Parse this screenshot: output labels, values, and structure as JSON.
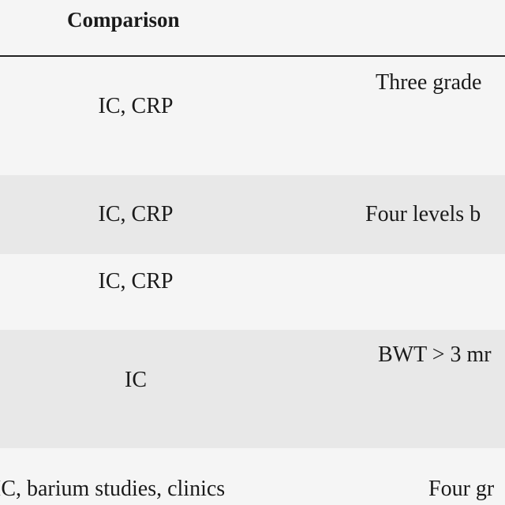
{
  "table": {
    "header": [
      "Comparison"
    ],
    "rows": [
      [
        "IC, CRP",
        "Three grade"
      ],
      [
        "IC, CRP",
        "Four levels b"
      ],
      [
        "IC, CRP"
      ],
      [
        "IC",
        "BWT > 3 mr"
      ],
      [
        "IC, barium studies, clinics",
        "Four gr"
      ]
    ]
  }
}
